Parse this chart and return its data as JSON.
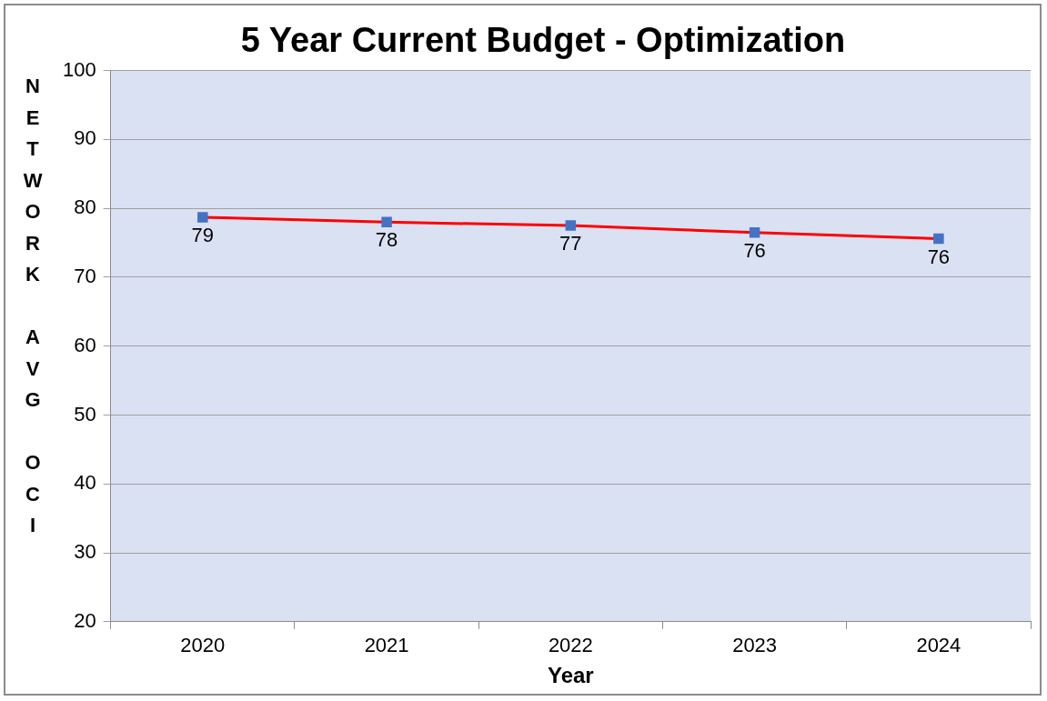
{
  "chart_data": {
    "type": "line",
    "title": "5 Year Current Budget - Optimization",
    "xlabel": "Year",
    "ylabel": "NETWORK AVG OCI",
    "categories": [
      "2020",
      "2021",
      "2022",
      "2023",
      "2024"
    ],
    "series": [
      {
        "color": "#ff0000",
        "values": [
          78.7,
          78,
          77.5,
          76.5,
          75.6
        ],
        "value_labels": [
          "79",
          "78",
          "77",
          "76",
          "76"
        ]
      }
    ],
    "ylim": [
      20,
      100
    ],
    "yticks": [
      20,
      30,
      40,
      50,
      60,
      70,
      80,
      90,
      100
    ],
    "grid": "y",
    "legend": false,
    "marker": "square",
    "line_style": "solid"
  }
}
